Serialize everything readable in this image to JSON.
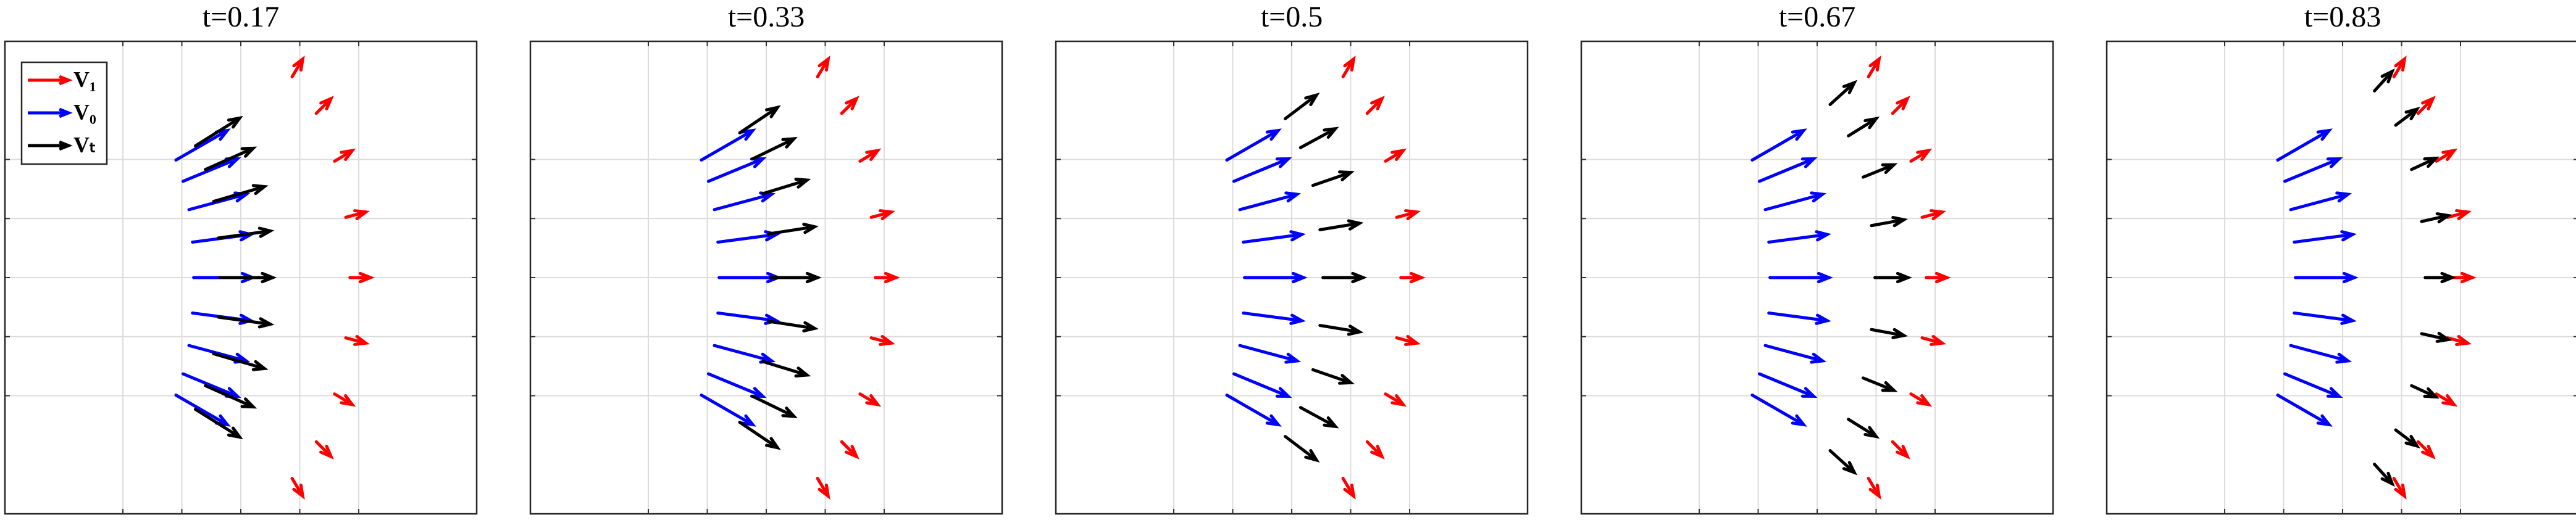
{
  "chart_data": [
    {
      "type": "quiver",
      "title": "t=0.17",
      "xlim": [
        0,
        8
      ],
      "ylim": [
        0,
        8
      ],
      "xticks": [
        2,
        3,
        4,
        5,
        6
      ],
      "yticks": [
        2,
        3,
        4,
        5,
        6
      ],
      "grid": true,
      "legend": "upper left",
      "series": [
        {
          "name": "V₁",
          "color": "#ff0000",
          "x": [
            4.87,
            5.28,
            5.59,
            5.78,
            5.85,
            5.78,
            5.59,
            5.28,
            4.87
          ],
          "y": [
            0.6,
            1.22,
            2.03,
            2.98,
            4,
            5.02,
            5.97,
            6.78,
            7.4
          ],
          "u": [
            0.18,
            0.25,
            0.3,
            0.34,
            0.35,
            0.34,
            0.3,
            0.25,
            0.18
          ],
          "v": [
            -0.3,
            -0.25,
            -0.18,
            -0.09,
            0,
            0.09,
            0.18,
            0.25,
            0.3
          ]
        },
        {
          "name": "V₀",
          "color": "#0000ff",
          "x": [
            2.9,
            3.02,
            3.12,
            3.18,
            3.2,
            3.18,
            3.12,
            3.02,
            2.9
          ],
          "y": [
            2.01,
            2.37,
            2.85,
            3.4,
            4,
            4.6,
            5.15,
            5.63,
            5.99
          ],
          "u": [
            0.87,
            0.92,
            0.97,
            0.99,
            1,
            0.99,
            0.97,
            0.92,
            0.87
          ],
          "v": [
            -0.5,
            -0.38,
            -0.26,
            -0.13,
            0,
            0.13,
            0.26,
            0.38,
            0.5
          ]
        },
        {
          "name": "Vₜ",
          "color": "#000000",
          "x": [
            3.23,
            3.4,
            3.54,
            3.62,
            3.65,
            3.62,
            3.54,
            3.4,
            3.23
          ],
          "y": [
            1.77,
            2.17,
            2.71,
            3.33,
            4,
            4.67,
            5.29,
            5.83,
            6.23
          ],
          "u": [
            0.75,
            0.81,
            0.86,
            0.88,
            0.89,
            0.88,
            0.86,
            0.81,
            0.75
          ],
          "v": [
            -0.47,
            -0.36,
            -0.25,
            -0.12,
            0,
            0.12,
            0.25,
            0.36,
            0.47
          ]
        }
      ]
    },
    {
      "type": "quiver",
      "title": "t=0.33",
      "xlim": [
        0,
        8
      ],
      "ylim": [
        0,
        8
      ],
      "xticks": [
        2,
        3,
        4,
        5,
        6
      ],
      "yticks": [
        2,
        3,
        4,
        5,
        6
      ],
      "grid": true,
      "series": [
        {
          "color": "#ff0000",
          "x": [
            4.87,
            5.28,
            5.59,
            5.78,
            5.85,
            5.78,
            5.59,
            5.28,
            4.87
          ],
          "y": [
            0.6,
            1.22,
            2.03,
            2.98,
            4,
            5.02,
            5.97,
            6.78,
            7.4
          ],
          "u": [
            0.18,
            0.25,
            0.3,
            0.34,
            0.35,
            0.34,
            0.3,
            0.25,
            0.18
          ],
          "v": [
            -0.3,
            -0.25,
            -0.18,
            -0.09,
            0,
            0.09,
            0.18,
            0.25,
            0.3
          ]
        },
        {
          "color": "#0000ff",
          "x": [
            2.9,
            3.02,
            3.12,
            3.18,
            3.2,
            3.18,
            3.12,
            3.02,
            2.9
          ],
          "y": [
            2.01,
            2.37,
            2.85,
            3.4,
            4,
            4.6,
            5.15,
            5.63,
            5.99
          ],
          "u": [
            0.87,
            0.92,
            0.97,
            0.99,
            1,
            0.99,
            0.97,
            0.92,
            0.87
          ],
          "v": [
            -0.5,
            -0.38,
            -0.26,
            -0.13,
            0,
            0.13,
            0.26,
            0.38,
            0.5
          ]
        },
        {
          "color": "#000000",
          "x": [
            3.55,
            3.77,
            3.94,
            4.04,
            4.08,
            4.04,
            3.94,
            3.77,
            3.55
          ],
          "y": [
            1.55,
            1.99,
            2.58,
            3.26,
            4,
            4.74,
            5.42,
            6.01,
            6.45
          ],
          "u": [
            0.64,
            0.7,
            0.75,
            0.78,
            0.79,
            0.78,
            0.75,
            0.7,
            0.64
          ],
          "v": [
            -0.43,
            -0.34,
            -0.23,
            -0.12,
            0,
            0.12,
            0.23,
            0.34,
            0.43
          ]
        }
      ]
    },
    {
      "type": "quiver",
      "title": "t=0.5",
      "xlim": [
        0,
        8
      ],
      "ylim": [
        0,
        8
      ],
      "xticks": [
        2,
        3,
        4,
        5,
        6
      ],
      "yticks": [
        2,
        3,
        4,
        5,
        6
      ],
      "grid": true,
      "series": [
        {
          "color": "#ff0000",
          "x": [
            4.87,
            5.28,
            5.59,
            5.78,
            5.85,
            5.78,
            5.59,
            5.28,
            4.87
          ],
          "y": [
            0.6,
            1.22,
            2.03,
            2.98,
            4,
            5.02,
            5.97,
            6.78,
            7.4
          ],
          "u": [
            0.18,
            0.25,
            0.3,
            0.34,
            0.35,
            0.34,
            0.3,
            0.25,
            0.18
          ],
          "v": [
            -0.3,
            -0.25,
            -0.18,
            -0.09,
            0,
            0.09,
            0.18,
            0.25,
            0.3
          ]
        },
        {
          "color": "#0000ff",
          "x": [
            2.9,
            3.02,
            3.12,
            3.18,
            3.2,
            3.18,
            3.12,
            3.02,
            2.9
          ],
          "y": [
            2.01,
            2.37,
            2.85,
            3.4,
            4,
            4.6,
            5.15,
            5.63,
            5.99
          ],
          "u": [
            0.87,
            0.92,
            0.97,
            0.99,
            1,
            0.99,
            0.97,
            0.92,
            0.87
          ],
          "v": [
            -0.5,
            -0.38,
            -0.26,
            -0.13,
            0,
            0.13,
            0.26,
            0.38,
            0.5
          ]
        },
        {
          "color": "#000000",
          "x": [
            3.89,
            4.15,
            4.36,
            4.48,
            4.53,
            4.48,
            4.36,
            4.15,
            3.89
          ],
          "y": [
            1.31,
            1.8,
            2.44,
            3.19,
            4,
            4.81,
            5.56,
            6.2,
            6.69
          ],
          "u": [
            0.53,
            0.59,
            0.64,
            0.67,
            0.68,
            0.67,
            0.64,
            0.59,
            0.53
          ],
          "v": [
            -0.4,
            -0.32,
            -0.22,
            -0.11,
            0,
            0.11,
            0.22,
            0.32,
            0.4
          ]
        }
      ]
    },
    {
      "type": "quiver",
      "title": "t=0.67",
      "xlim": [
        0,
        8
      ],
      "ylim": [
        0,
        8
      ],
      "xticks": [
        2,
        3,
        4,
        5,
        6
      ],
      "yticks": [
        2,
        3,
        4,
        5,
        6
      ],
      "grid": true,
      "series": [
        {
          "color": "#ff0000",
          "x": [
            4.87,
            5.28,
            5.59,
            5.78,
            5.85,
            5.78,
            5.59,
            5.28,
            4.87
          ],
          "y": [
            0.6,
            1.22,
            2.03,
            2.98,
            4,
            5.02,
            5.97,
            6.78,
            7.4
          ],
          "u": [
            0.18,
            0.25,
            0.3,
            0.34,
            0.35,
            0.34,
            0.3,
            0.25,
            0.18
          ],
          "v": [
            -0.3,
            -0.25,
            -0.18,
            -0.09,
            0,
            0.09,
            0.18,
            0.25,
            0.3
          ]
        },
        {
          "color": "#0000ff",
          "x": [
            2.9,
            3.02,
            3.12,
            3.18,
            3.2,
            3.18,
            3.12,
            3.02,
            2.9
          ],
          "y": [
            2.01,
            2.37,
            2.85,
            3.4,
            4,
            4.6,
            5.15,
            5.63,
            5.99
          ],
          "u": [
            0.87,
            0.92,
            0.97,
            0.99,
            1,
            0.99,
            0.97,
            0.92,
            0.87
          ],
          "v": [
            -0.5,
            -0.38,
            -0.26,
            -0.13,
            0,
            0.13,
            0.26,
            0.38,
            0.5
          ]
        },
        {
          "color": "#000000",
          "x": [
            4.22,
            4.53,
            4.78,
            4.92,
            4.98,
            4.92,
            4.78,
            4.53,
            4.22
          ],
          "y": [
            1.07,
            1.6,
            2.3,
            3.12,
            4,
            4.88,
            5.7,
            6.4,
            6.93
          ],
          "u": [
            0.41,
            0.47,
            0.52,
            0.55,
            0.56,
            0.55,
            0.52,
            0.47,
            0.41
          ],
          "v": [
            -0.37,
            -0.29,
            -0.21,
            -0.1,
            0,
            0.1,
            0.21,
            0.29,
            0.37
          ]
        }
      ]
    },
    {
      "type": "quiver",
      "title": "t=0.83",
      "xlim": [
        0,
        8
      ],
      "ylim": [
        0,
        8
      ],
      "xticks": [
        2,
        3,
        4,
        5,
        6
      ],
      "yticks": [
        2,
        3,
        4,
        5,
        6
      ],
      "grid": true,
      "series": [
        {
          "color": "#ff0000",
          "x": [
            4.87,
            5.28,
            5.59,
            5.78,
            5.85,
            5.78,
            5.59,
            5.28,
            4.87
          ],
          "y": [
            0.6,
            1.22,
            2.03,
            2.98,
            4,
            5.02,
            5.97,
            6.78,
            7.4
          ],
          "u": [
            0.18,
            0.25,
            0.3,
            0.34,
            0.35,
            0.34,
            0.3,
            0.25,
            0.18
          ],
          "v": [
            -0.3,
            -0.25,
            -0.18,
            -0.09,
            0,
            0.09,
            0.18,
            0.25,
            0.3
          ]
        },
        {
          "color": "#0000ff",
          "x": [
            2.9,
            3.02,
            3.12,
            3.18,
            3.2,
            3.18,
            3.12,
            3.02,
            2.9
          ],
          "y": [
            2.01,
            2.37,
            2.85,
            3.4,
            4,
            4.6,
            5.15,
            5.63,
            5.99
          ],
          "u": [
            0.87,
            0.92,
            0.97,
            0.99,
            1,
            0.99,
            0.97,
            0.92,
            0.87
          ],
          "v": [
            -0.5,
            -0.38,
            -0.26,
            -0.13,
            0,
            0.13,
            0.26,
            0.38,
            0.5
          ]
        },
        {
          "color": "#000000",
          "x": [
            4.54,
            4.9,
            5.17,
            5.34,
            5.4,
            5.34,
            5.17,
            4.9,
            4.54
          ],
          "y": [
            0.84,
            1.42,
            2.17,
            3.05,
            4,
            4.95,
            5.83,
            6.58,
            7.16
          ],
          "u": [
            0.3,
            0.36,
            0.41,
            0.45,
            0.46,
            0.45,
            0.41,
            0.36,
            0.3
          ],
          "v": [
            -0.33,
            -0.27,
            -0.19,
            -0.1,
            0,
            0.1,
            0.19,
            0.27,
            0.33
          ]
        }
      ]
    }
  ]
}
